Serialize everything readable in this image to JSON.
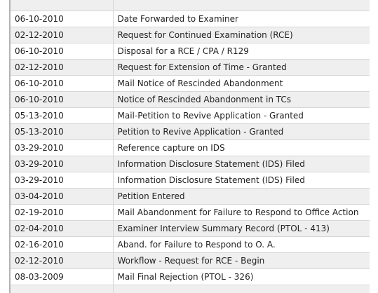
{
  "transaction_history": {
    "rows": [
      {
        "date": "",
        "description": ""
      },
      {
        "date": "06-10-2010",
        "description": "Date Forwarded to Examiner"
      },
      {
        "date": "02-12-2010",
        "description": "Request for Continued Examination (RCE)"
      },
      {
        "date": "06-10-2010",
        "description": "Disposal for a RCE / CPA / R129"
      },
      {
        "date": "02-12-2010",
        "description": "Request for Extension of Time - Granted"
      },
      {
        "date": "06-10-2010",
        "description": "Mail Notice of Rescinded Abandonment"
      },
      {
        "date": "06-10-2010",
        "description": "Notice of Rescinded Abandonment in TCs"
      },
      {
        "date": "05-13-2010",
        "description": "Mail-Petition to Revive Application - Granted"
      },
      {
        "date": "05-13-2010",
        "description": "Petition to Revive Application - Granted"
      },
      {
        "date": "03-29-2010",
        "description": "Reference capture on IDS"
      },
      {
        "date": "03-29-2010",
        "description": "Information Disclosure Statement (IDS) Filed"
      },
      {
        "date": "03-29-2010",
        "description": "Information Disclosure Statement (IDS) Filed"
      },
      {
        "date": "03-04-2010",
        "description": "Petition Entered"
      },
      {
        "date": "02-19-2010",
        "description": "Mail Abandonment for Failure to Respond to Office Action"
      },
      {
        "date": "02-04-2010",
        "description": "Examiner Interview Summary Record (PTOL - 413)"
      },
      {
        "date": "02-16-2010",
        "description": "Aband. for Failure to Respond to O. A."
      },
      {
        "date": "02-12-2010",
        "description": "Workflow - Request for RCE - Begin"
      },
      {
        "date": "08-03-2009",
        "description": "Mail Final Rejection (PTOL - 326)"
      },
      {
        "date": "",
        "description": ""
      }
    ]
  }
}
